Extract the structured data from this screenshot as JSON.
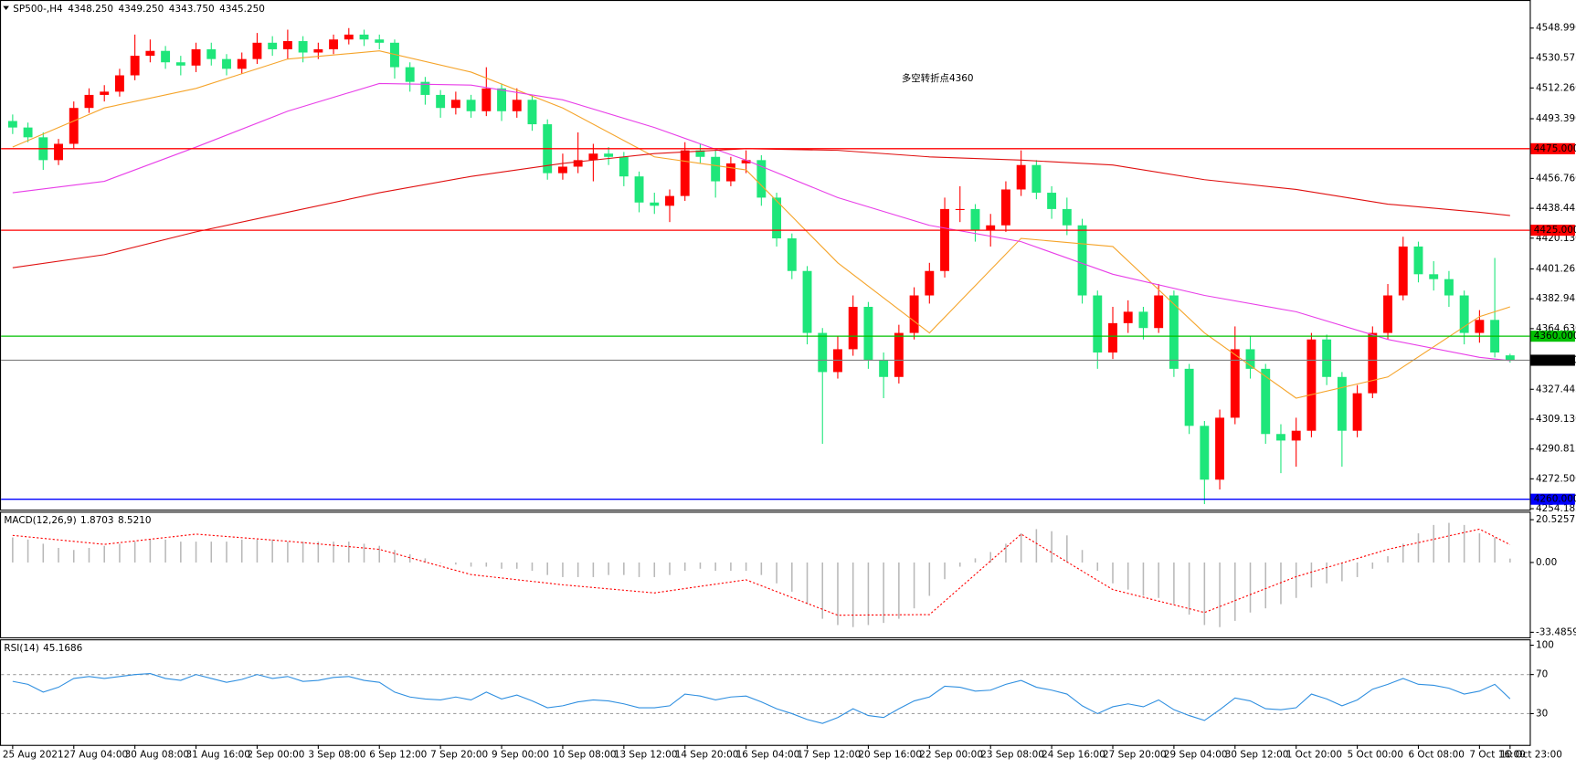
{
  "chart_data": [
    {
      "type": "candlestick",
      "symbol": "SP500-,H4",
      "header_values": [
        4348.25,
        4349.25,
        4343.75,
        4345.25
      ],
      "header_labels": [
        "4348.250",
        "4349.250",
        "4343.750",
        "4345.250"
      ],
      "annotation": "多空转折点4360",
      "annotation_color": "#ff0000",
      "up_color": "#ff0000",
      "down_color": "#1ee67a",
      "xlim": [
        -0.5,
        98.5
      ],
      "xticks": [
        {
          "value": 0,
          "label": "25 Aug 2021"
        },
        {
          "value": 4,
          "label": "27 Aug 04:00"
        },
        {
          "value": 8,
          "label": "30 Aug 08:00"
        },
        {
          "value": 12,
          "label": "31 Aug 16:00"
        },
        {
          "value": 16,
          "label": "2 Sep 00:00"
        },
        {
          "value": 20,
          "label": "3 Sep 08:00"
        },
        {
          "value": 24,
          "label": "6 Sep 12:00"
        },
        {
          "value": 28,
          "label": "7 Sep 20:00"
        },
        {
          "value": 32,
          "label": "9 Sep 00:00"
        },
        {
          "value": 36,
          "label": "10 Sep 08:00"
        },
        {
          "value": 40,
          "label": "13 Sep 12:00"
        },
        {
          "value": 44,
          "label": "14 Sep 20:00"
        },
        {
          "value": 48,
          "label": "16 Sep 04:00"
        },
        {
          "value": 52,
          "label": "17 Sep 12:00"
        },
        {
          "value": 56,
          "label": "20 Sep 16:00"
        },
        {
          "value": 60,
          "label": "22 Sep 00:00"
        },
        {
          "value": 64,
          "label": "23 Sep 08:00"
        },
        {
          "value": 68,
          "label": "24 Sep 16:00"
        },
        {
          "value": 72,
          "label": "27 Sep 20:00"
        },
        {
          "value": 76,
          "label": "29 Sep 04:00"
        },
        {
          "value": 80,
          "label": "30 Sep 12:00"
        },
        {
          "value": 84,
          "label": "1 Oct 20:00"
        },
        {
          "value": 88,
          "label": "5 Oct 00:00"
        },
        {
          "value": 92,
          "label": "6 Oct 08:00"
        },
        {
          "value": 96,
          "label": "7 Oct 16:00"
        },
        {
          "value": 98,
          "label": "10 Oct 23:00"
        }
      ],
      "ylim": [
        4253.6,
        4565.6
      ],
      "yticks": [
        {
          "value": 4548.99,
          "label": "4548.990"
        },
        4530.575,
        {
          "value": 4512.26,
          "label": "4512.260"
        },
        {
          "value": 4493.39,
          "label": "4493.390"
        },
        {
          "value": 4456.76,
          "label": "4456.760"
        },
        4438.445,
        {
          "value": 4420.13,
          "label": "4420.130"
        },
        4401.265,
        4382.945,
        {
          "value": 4364.63,
          "label": "4364.630"
        },
        4327.445,
        {
          "value": 4309.13,
          "label": "4309.130"
        },
        4290.815,
        {
          "value": 4272.5,
          "label": "4272.500"
        },
        4254.185
      ],
      "open": [
        4492,
        4488,
        4482,
        4468,
        4478,
        4500,
        4508,
        4510,
        4520,
        4532,
        4535,
        4528,
        4526,
        4536,
        4530,
        4524,
        4530,
        4540,
        4536,
        4541,
        4534,
        4536,
        4542,
        4545,
        4542,
        4540,
        4525,
        4516,
        4508,
        4500,
        4505,
        4498,
        4512,
        4498,
        4505,
        4490,
        4460,
        4464,
        4468,
        4472,
        4470,
        4458,
        4442,
        4440,
        4446,
        4474,
        4470,
        4455,
        4466,
        4468,
        4445,
        4420,
        4400,
        4362,
        4338,
        4352,
        4378,
        4345,
        4335,
        4362,
        4385,
        4400,
        4438,
        4438,
        4425,
        4428,
        4450,
        4465,
        4448,
        4438,
        4428,
        4385,
        4350,
        4368,
        4375,
        4365,
        4385,
        4340,
        4305,
        4272,
        4310,
        4352,
        4340,
        4300,
        4296,
        4302,
        4358,
        4335,
        4302,
        4325,
        4362,
        4385,
        4415,
        4398,
        4395,
        4385,
        4362,
        4370,
        4348.25
      ],
      "high": [
        4496,
        4491,
        4485,
        4481,
        4504,
        4512,
        4514,
        4524,
        4545,
        4542,
        4538,
        4532,
        4540,
        4540,
        4533,
        4534,
        4546,
        4544,
        4548,
        4544,
        4540,
        4545,
        4549,
        4548,
        4545,
        4542,
        4528,
        4519,
        4511,
        4510,
        4508,
        4525,
        4515,
        4512,
        4508,
        4493,
        4472,
        4485,
        4478,
        4476,
        4473,
        4461,
        4448,
        4450,
        4479,
        4478,
        4474,
        4470,
        4474,
        4471,
        4448,
        4423,
        4403,
        4365,
        4360,
        4385,
        4381,
        4350,
        4367,
        4390,
        4405,
        4445,
        4452,
        4441,
        4435,
        4455,
        4474,
        4468,
        4452,
        4445,
        4432,
        4388,
        4378,
        4382,
        4378,
        4392,
        4388,
        4343,
        4308,
        4315,
        4366,
        4360,
        4343,
        4306,
        4310,
        4362,
        4361,
        4338,
        4330,
        4366,
        4392,
        4421,
        4418,
        4406,
        4400,
        4388,
        4376,
        4408,
        4349.25
      ],
      "low": [
        4484,
        4479,
        4462,
        4465,
        4475,
        4497,
        4504,
        4507,
        4517,
        4528,
        4524,
        4520,
        4522,
        4526,
        4520,
        4521,
        4527,
        4532,
        4530,
        4528,
        4530,
        4533,
        4539,
        4538,
        4536,
        4518,
        4510,
        4502,
        4494,
        4496,
        4494,
        4495,
        4492,
        4494,
        4486,
        4456,
        4456,
        4460,
        4455,
        4465,
        4452,
        4436,
        4435,
        4430,
        4443,
        4466,
        4445,
        4452,
        4460,
        4440,
        4415,
        4395,
        4355,
        4294,
        4334,
        4348,
        4340,
        4322,
        4331,
        4358,
        4380,
        4396,
        4430,
        4418,
        4415,
        4424,
        4446,
        4444,
        4432,
        4422,
        4380,
        4340,
        4346,
        4362,
        4358,
        4362,
        4335,
        4300,
        4257,
        4266,
        4306,
        4334,
        4294,
        4276,
        4280,
        4298,
        4330,
        4280,
        4298,
        4322,
        4358,
        4382,
        4393,
        4388,
        4378,
        4355,
        4356,
        4347,
        4343.75
      ],
      "close": [
        4488,
        4482,
        4468,
        4478,
        4500,
        4508,
        4510,
        4520,
        4532,
        4535,
        4528,
        4526,
        4536,
        4530,
        4524,
        4530,
        4540,
        4536,
        4541,
        4534,
        4536,
        4542,
        4545,
        4542,
        4540,
        4525,
        4516,
        4508,
        4500,
        4505,
        4498,
        4512,
        4498,
        4505,
        4490,
        4460,
        4464,
        4468,
        4472,
        4470,
        4458,
        4442,
        4440,
        4446,
        4474,
        4470,
        4455,
        4466,
        4468,
        4445,
        4420,
        4400,
        4362,
        4338,
        4352,
        4378,
        4345,
        4335,
        4362,
        4385,
        4400,
        4438,
        4438,
        4425,
        4428,
        4450,
        4465,
        4448,
        4438,
        4428,
        4385,
        4350,
        4368,
        4375,
        4365,
        4385,
        4340,
        4305,
        4272,
        4310,
        4352,
        4340,
        4300,
        4296,
        4302,
        4358,
        4335,
        4302,
        4325,
        4362,
        4385,
        4415,
        4398,
        4395,
        4385,
        4362,
        4370,
        4350,
        4345.25
      ],
      "line_x": [
        0,
        6,
        12,
        18,
        24,
        30,
        36,
        42,
        48,
        54,
        60,
        66,
        72,
        78,
        84,
        90,
        96,
        98
      ],
      "series": [
        {
          "color": "#f5a42a",
          "values": [
            4476,
            4500,
            4512,
            4530,
            4535,
            4522,
            4500,
            4470,
            4462,
            4405,
            4362,
            4420,
            4415,
            4362,
            4322,
            4335,
            4372,
            4378
          ]
        },
        {
          "color": "#e83ee8",
          "values": [
            4448,
            4455,
            4476,
            4498,
            4515,
            4514,
            4505,
            4488,
            4468,
            4445,
            4428,
            4418,
            4398,
            4385,
            4375,
            4358,
            4347,
            4345
          ]
        },
        {
          "color": "#e01010",
          "values": [
            4402,
            4410,
            4424,
            4436,
            4448,
            4458,
            4466,
            4472,
            4475,
            4474,
            4470,
            4468,
            4465,
            4456,
            4450,
            4441,
            4436,
            4434
          ]
        }
      ],
      "levels": [
        {
          "value": 4475,
          "label": "4475.000",
          "color": "#ff0000"
        },
        {
          "value": 4425,
          "label": "4425.000",
          "color": "#ff0000"
        },
        {
          "value": 4360,
          "label": "4360.000",
          "color": "#00c000"
        },
        {
          "value": 4260,
          "label": "4260.000",
          "color": "#0000ff"
        }
      ],
      "current": {
        "value": 4345.25,
        "label": "4345.250",
        "color": "#808080"
      }
    },
    {
      "type": "macd",
      "title": "MACD(12,26,9)",
      "color": "#b8b8b8",
      "signal_color": "#ff0000",
      "header_values": [
        1.8703,
        8.521
      ],
      "header_labels": [
        "1.8703",
        "8.5210"
      ],
      "xlim": [
        -0.5,
        98.5
      ],
      "ylim": [
        -35.9,
        23.9
      ],
      "yticks": [
        20.5257,
        {
          "value": 0,
          "label": "0.00"
        },
        -33.4859
      ],
      "values": [
        12,
        11,
        9,
        7,
        6,
        7,
        8,
        9,
        10,
        11,
        11,
        10,
        10,
        10,
        10,
        11,
        11,
        11,
        10,
        10,
        10,
        10,
        10,
        9,
        8,
        6,
        4,
        2,
        0,
        -1,
        -2,
        -2,
        -3,
        -3,
        -4,
        -6,
        -7,
        -7,
        -7,
        -6,
        -6,
        -7,
        -7,
        -6,
        -4,
        -3,
        -4,
        -4,
        -4,
        -6,
        -10,
        -14,
        -20,
        -27,
        -30,
        -31,
        -30,
        -29,
        -27,
        -22,
        -16,
        -8,
        -2,
        2,
        5,
        9,
        14,
        16,
        15,
        13,
        6,
        -4,
        -10,
        -13,
        -16,
        -17,
        -20,
        -25,
        -30,
        -31,
        -28,
        -24,
        -22,
        -20,
        -17,
        -12,
        -10,
        -9,
        -7,
        -3,
        3,
        9,
        14,
        18,
        19,
        18,
        14,
        12,
        1.8703
      ],
      "signal_x": [
        0,
        6,
        12,
        18,
        24,
        30,
        36,
        42,
        48,
        54,
        60,
        66,
        72,
        78,
        84,
        90,
        96,
        98
      ],
      "signal": [
        13,
        8.7,
        13.6,
        10.2,
        6.3,
        -5.8,
        -10.7,
        -14.6,
        -8.3,
        -25.3,
        -25,
        13.6,
        -13,
        -24,
        -6.8,
        6.3,
        16,
        8.521
      ]
    },
    {
      "type": "line",
      "title": "RSI(14)",
      "color": "#2f8fe0",
      "xlim": [
        -0.5,
        98.5
      ],
      "ylim": [
        -2,
        105
      ],
      "yticks": [
        100,
        70,
        30
      ],
      "levels": [
        70,
        30
      ],
      "values": [
        63,
        60,
        52,
        57,
        66,
        68,
        66,
        68,
        70,
        71,
        66,
        64,
        70,
        66,
        62,
        65,
        70,
        66,
        68,
        63,
        64,
        67,
        68,
        64,
        62,
        52,
        47,
        45,
        44,
        47,
        44,
        52,
        45,
        49,
        43,
        36,
        38,
        42,
        44,
        43,
        40,
        36,
        36,
        38,
        50,
        48,
        44,
        47,
        48,
        42,
        35,
        30,
        24,
        20,
        26,
        35,
        28,
        26,
        35,
        43,
        47,
        58,
        57,
        53,
        54,
        60,
        64,
        57,
        54,
        50,
        38,
        30,
        37,
        40,
        37,
        44,
        34,
        28,
        23,
        34,
        46,
        43,
        35,
        34,
        36,
        50,
        45,
        38,
        44,
        55,
        60,
        66,
        60,
        59,
        56,
        50,
        53,
        60,
        45.1686
      ]
    }
  ]
}
